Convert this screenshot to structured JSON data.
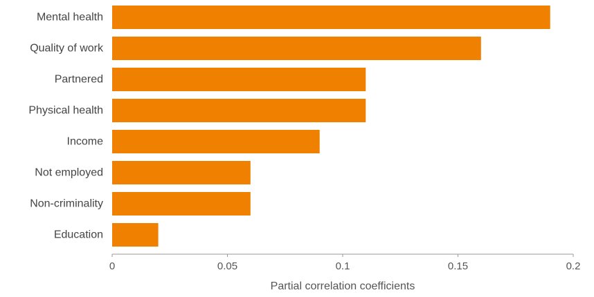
{
  "chart_data": {
    "type": "bar",
    "orientation": "horizontal",
    "categories": [
      "Mental health",
      "Quality of work",
      "Partnered",
      "Physical health",
      "Income",
      "Not employed",
      "Non-criminality",
      "Education"
    ],
    "values": [
      0.19,
      0.16,
      0.11,
      0.11,
      0.09,
      0.06,
      0.06,
      0.02
    ],
    "title": "",
    "xlabel": "Partial correlation coefficients",
    "ylabel": "",
    "xlim": [
      0,
      0.2
    ],
    "xticks": [
      0,
      0.05,
      0.1,
      0.15,
      0.2
    ],
    "xtick_labels": [
      "0",
      "0.05",
      "0.1",
      "0.15",
      "0.2"
    ],
    "grid": false,
    "bar_color": "#F08000",
    "axis_color": "#999999"
  }
}
